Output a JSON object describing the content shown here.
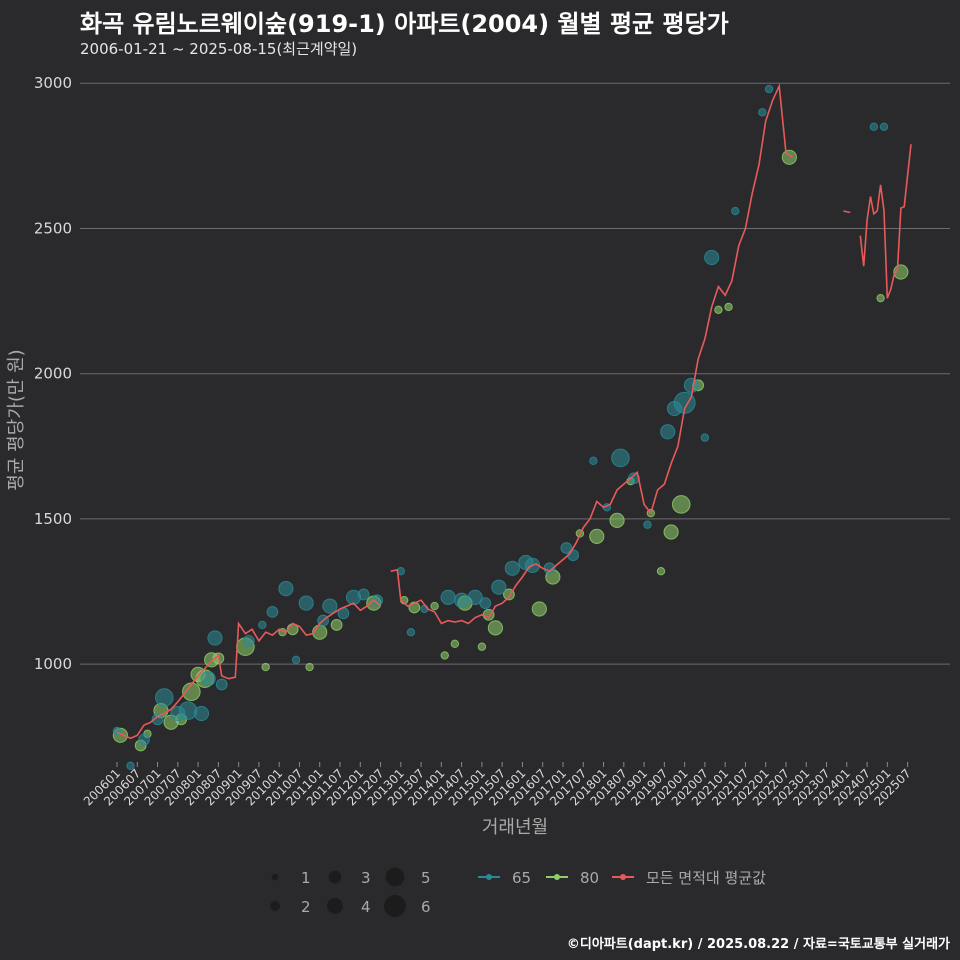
{
  "header": {
    "title": "화곡 유림노르웨이숲(919-1) 아파트(2004) 월별 평균 평당가",
    "subtitle": "2006-01-21 ~ 2025-08-15(최근계약일)"
  },
  "footer": {
    "credit": "©디아파트(dapt.kr) / 2025.08.22 / 자료=국토교통부 실거래가"
  },
  "colors": {
    "background": "#2a2a2c",
    "grid": "#6b6b6b",
    "series_65": "#2b8a98",
    "series_80": "#8fcf6a",
    "series_avg": "#e85a5a",
    "text_dim": "#a9a9a9"
  },
  "chart_data": {
    "type": "line",
    "xlabel": "거래년월",
    "ylabel": "평균 평당가(만 원)",
    "x_start": "2006-01",
    "x_end": "2025-08",
    "ylim": [
      670,
      3080
    ],
    "yticks": [
      1000,
      1500,
      2000,
      2500,
      3000
    ],
    "xtick_labels": [
      "200601",
      "200607",
      "200701",
      "200707",
      "200801",
      "200807",
      "200901",
      "200907",
      "201001",
      "201007",
      "201101",
      "201107",
      "201201",
      "201207",
      "201301",
      "201307",
      "201401",
      "201407",
      "201501",
      "201507",
      "201601",
      "201607",
      "201701",
      "201707",
      "201801",
      "201807",
      "201901",
      "201907",
      "202001",
      "202007",
      "202101",
      "202107",
      "202201",
      "202207",
      "202301",
      "202307",
      "202401",
      "202407",
      "202501",
      "202507"
    ],
    "grid": "horizontal",
    "legend": {
      "position": "bottom",
      "size_title": "",
      "size_values": [
        "1",
        "2",
        "3",
        "4",
        "5",
        "6"
      ],
      "series_labels": [
        "65",
        "80",
        "모든 면적대 평균값"
      ]
    },
    "series": [
      {
        "name": "모든 면적대 평균값",
        "kind": "line",
        "segments": [
          [
            [
              "2006-01",
              765
            ],
            [
              "2006-03",
              755
            ],
            [
              "2006-05",
              745
            ],
            [
              "2006-07",
              755
            ],
            [
              "2006-09",
              790
            ],
            [
              "2006-11",
              800
            ],
            [
              "2007-01",
              820
            ],
            [
              "2007-03",
              830
            ],
            [
              "2007-05",
              845
            ],
            [
              "2007-07",
              870
            ],
            [
              "2007-09",
              900
            ],
            [
              "2007-11",
              930
            ],
            [
              "2008-01",
              960
            ],
            [
              "2008-03",
              985
            ],
            [
              "2008-05",
              1010
            ],
            [
              "2008-07",
              1030
            ],
            [
              "2008-08",
              960
            ],
            [
              "2008-10",
              950
            ],
            [
              "2008-12",
              955
            ],
            [
              "2009-01",
              1140
            ],
            [
              "2009-03",
              1105
            ],
            [
              "2009-05",
              1120
            ],
            [
              "2009-07",
              1080
            ],
            [
              "2009-09",
              1110
            ],
            [
              "2009-11",
              1100
            ],
            [
              "2010-01",
              1120
            ],
            [
              "2010-03",
              1110
            ],
            [
              "2010-05",
              1140
            ],
            [
              "2010-07",
              1130
            ],
            [
              "2010-09",
              1100
            ],
            [
              "2010-11",
              1105
            ],
            [
              "2011-01",
              1140
            ],
            [
              "2011-03",
              1160
            ],
            [
              "2011-05",
              1175
            ],
            [
              "2011-07",
              1190
            ],
            [
              "2011-09",
              1200
            ],
            [
              "2011-11",
              1210
            ],
            [
              "2012-01",
              1185
            ],
            [
              "2012-03",
              1200
            ],
            [
              "2012-05",
              1220
            ],
            [
              "2012-07",
              1200
            ]
          ],
          [
            [
              "2012-10",
              1320
            ],
            [
              "2012-12",
              1325
            ],
            [
              "2013-01",
              1220
            ],
            [
              "2013-03",
              1200
            ],
            [
              "2013-05",
              1210
            ],
            [
              "2013-07",
              1220
            ],
            [
              "2013-09",
              1190
            ],
            [
              "2013-11",
              1180
            ],
            [
              "2014-01",
              1140
            ],
            [
              "2014-03",
              1150
            ],
            [
              "2014-05",
              1145
            ],
            [
              "2014-07",
              1150
            ],
            [
              "2014-09",
              1140
            ],
            [
              "2014-11",
              1160
            ],
            [
              "2015-01",
              1170
            ],
            [
              "2015-03",
              1160
            ],
            [
              "2015-05",
              1200
            ],
            [
              "2015-07",
              1210
            ],
            [
              "2015-09",
              1230
            ],
            [
              "2015-11",
              1270
            ],
            [
              "2016-01",
              1300
            ],
            [
              "2016-03",
              1335
            ],
            [
              "2016-05",
              1345
            ],
            [
              "2016-07",
              1330
            ],
            [
              "2016-09",
              1320
            ],
            [
              "2016-11",
              1340
            ],
            [
              "2017-01",
              1360
            ],
            [
              "2017-03",
              1380
            ],
            [
              "2017-05",
              1420
            ],
            [
              "2017-07",
              1470
            ],
            [
              "2017-09",
              1500
            ],
            [
              "2017-11",
              1560
            ],
            [
              "2018-01",
              1540
            ],
            [
              "2018-03",
              1550
            ],
            [
              "2018-05",
              1600
            ],
            [
              "2018-07",
              1620
            ],
            [
              "2018-09",
              1640
            ],
            [
              "2018-11",
              1660
            ],
            [
              "2019-01",
              1550
            ],
            [
              "2019-03",
              1520
            ],
            [
              "2019-05",
              1600
            ],
            [
              "2019-07",
              1620
            ],
            [
              "2019-09",
              1690
            ],
            [
              "2019-11",
              1750
            ],
            [
              "2020-01",
              1880
            ],
            [
              "2020-03",
              1920
            ],
            [
              "2020-05",
              2050
            ],
            [
              "2020-07",
              2120
            ],
            [
              "2020-09",
              2230
            ],
            [
              "2020-11",
              2300
            ],
            [
              "2021-01",
              2270
            ],
            [
              "2021-03",
              2320
            ],
            [
              "2021-05",
              2440
            ],
            [
              "2021-07",
              2500
            ],
            [
              "2021-09",
              2620
            ],
            [
              "2021-11",
              2720
            ],
            [
              "2022-01",
              2870
            ],
            [
              "2022-03",
              2940
            ],
            [
              "2022-05",
              2990
            ],
            [
              "2022-07",
              2760
            ],
            [
              "2022-09",
              2745
            ]
          ],
          [
            [
              "2023-12",
              2560
            ],
            [
              "2024-02",
              2555
            ]
          ],
          [
            [
              "2024-05",
              2475
            ],
            [
              "2024-06",
              2370
            ],
            [
              "2024-07",
              2530
            ],
            [
              "2024-08",
              2610
            ],
            [
              "2024-09",
              2550
            ],
            [
              "2024-10",
              2560
            ],
            [
              "2024-11",
              2650
            ],
            [
              "2024-12",
              2560
            ],
            [
              "2025-01",
              2260
            ],
            [
              "2025-02",
              2290
            ],
            [
              "2025-03",
              2340
            ],
            [
              "2025-04",
              2360
            ],
            [
              "2025-05",
              2570
            ],
            [
              "2025-06",
              2575
            ],
            [
              "2025-08",
              2790
            ]
          ]
        ]
      },
      {
        "name": "80",
        "kind": "scatter",
        "points": [
          [
            "2006-02",
            755,
            3
          ],
          [
            "2006-08",
            720,
            2
          ],
          [
            "2006-10",
            760,
            1
          ],
          [
            "2007-02",
            840,
            3
          ],
          [
            "2007-05",
            800,
            3
          ],
          [
            "2007-08",
            810,
            2
          ],
          [
            "2007-11",
            905,
            4
          ],
          [
            "2008-01",
            965,
            3
          ],
          [
            "2008-03",
            950,
            4
          ],
          [
            "2008-05",
            1015,
            3
          ],
          [
            "2008-07",
            1020,
            2
          ],
          [
            "2009-03",
            1060,
            4
          ],
          [
            "2009-09",
            990,
            1
          ],
          [
            "2010-02",
            1110,
            1
          ],
          [
            "2010-05",
            1120,
            2
          ],
          [
            "2010-10",
            990,
            1
          ],
          [
            "2011-01",
            1110,
            3
          ],
          [
            "2011-06",
            1135,
            2
          ],
          [
            "2012-05",
            1210,
            3
          ],
          [
            "2013-02",
            1220,
            1
          ],
          [
            "2013-05",
            1195,
            2
          ],
          [
            "2013-11",
            1200,
            1
          ],
          [
            "2014-02",
            1030,
            1
          ],
          [
            "2014-05",
            1070,
            1
          ],
          [
            "2014-08",
            1210,
            3
          ],
          [
            "2015-01",
            1060,
            1
          ],
          [
            "2015-03",
            1170,
            2
          ],
          [
            "2015-05",
            1125,
            3
          ],
          [
            "2015-09",
            1240,
            2
          ],
          [
            "2016-06",
            1190,
            3
          ],
          [
            "2016-10",
            1300,
            3
          ],
          [
            "2017-06",
            1450,
            1
          ],
          [
            "2017-11",
            1440,
            3
          ],
          [
            "2018-05",
            1495,
            3
          ],
          [
            "2018-09",
            1630,
            1
          ],
          [
            "2019-03",
            1520,
            1
          ],
          [
            "2019-06",
            1320,
            1
          ],
          [
            "2019-09",
            1455,
            3
          ],
          [
            "2019-12",
            1550,
            4
          ],
          [
            "2020-05",
            1960,
            2
          ],
          [
            "2020-11",
            2220,
            1
          ],
          [
            "2021-02",
            2230,
            1
          ],
          [
            "2022-08",
            2745,
            3
          ],
          [
            "2024-11",
            2260,
            1
          ],
          [
            "2025-05",
            2350,
            3
          ]
        ]
      },
      {
        "name": "65",
        "kind": "scatter",
        "points": [
          [
            "2006-01",
            770,
            1
          ],
          [
            "2006-05",
            650,
            1
          ],
          [
            "2006-09",
            740,
            2
          ],
          [
            "2007-01",
            810,
            2
          ],
          [
            "2007-03",
            885,
            4
          ],
          [
            "2007-07",
            830,
            3
          ],
          [
            "2007-10",
            840,
            4
          ],
          [
            "2008-02",
            830,
            3
          ],
          [
            "2008-04",
            950,
            3
          ],
          [
            "2008-06",
            1090,
            3
          ],
          [
            "2008-08",
            930,
            2
          ],
          [
            "2009-04",
            1080,
            2
          ],
          [
            "2009-08",
            1135,
            1
          ],
          [
            "2009-11",
            1180,
            2
          ],
          [
            "2010-03",
            1260,
            3
          ],
          [
            "2010-06",
            1015,
            1
          ],
          [
            "2010-09",
            1210,
            3
          ],
          [
            "2011-02",
            1150,
            2
          ],
          [
            "2011-04",
            1200,
            3
          ],
          [
            "2011-08",
            1175,
            2
          ],
          [
            "2011-11",
            1230,
            3
          ],
          [
            "2012-02",
            1240,
            2
          ],
          [
            "2012-06",
            1220,
            2
          ],
          [
            "2013-01",
            1320,
            1
          ],
          [
            "2013-04",
            1110,
            1
          ],
          [
            "2013-08",
            1190,
            1
          ],
          [
            "2014-03",
            1230,
            3
          ],
          [
            "2014-07",
            1220,
            3
          ],
          [
            "2014-11",
            1230,
            3
          ],
          [
            "2015-02",
            1210,
            2
          ],
          [
            "2015-06",
            1265,
            3
          ],
          [
            "2015-10",
            1330,
            3
          ],
          [
            "2016-02",
            1350,
            3
          ],
          [
            "2016-04",
            1340,
            3
          ],
          [
            "2016-09",
            1330,
            2
          ],
          [
            "2017-02",
            1400,
            2
          ],
          [
            "2017-04",
            1375,
            2
          ],
          [
            "2017-10",
            1700,
            1
          ],
          [
            "2018-02",
            1540,
            1
          ],
          [
            "2018-06",
            1710,
            4
          ],
          [
            "2018-10",
            1640,
            2
          ],
          [
            "2019-02",
            1480,
            1
          ],
          [
            "2019-08",
            1800,
            3
          ],
          [
            "2019-10",
            1880,
            3
          ],
          [
            "2020-01",
            1900,
            5
          ],
          [
            "2020-03",
            1960,
            3
          ],
          [
            "2020-07",
            1780,
            1
          ],
          [
            "2020-09",
            2400,
            3
          ],
          [
            "2021-04",
            2560,
            1
          ],
          [
            "2021-12",
            2900,
            1
          ],
          [
            "2022-02",
            2980,
            1
          ],
          [
            "2024-09",
            2850,
            1
          ],
          [
            "2024-12",
            2850,
            1
          ]
        ]
      }
    ]
  }
}
